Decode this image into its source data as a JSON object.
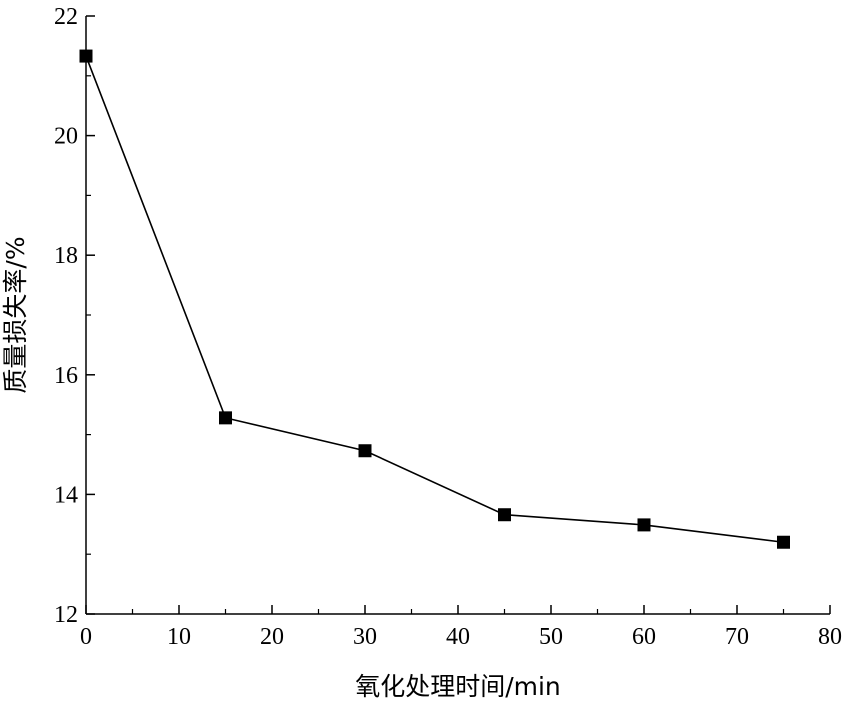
{
  "chart_data": {
    "type": "line",
    "xlabel": "氧化处理时间/min",
    "ylabel": "质量损失率/%",
    "xlim": [
      0,
      80
    ],
    "ylim": [
      12,
      22
    ],
    "xticks": [
      0,
      10,
      20,
      30,
      40,
      50,
      60,
      70,
      80
    ],
    "yticks": [
      12,
      14,
      16,
      18,
      20,
      22
    ],
    "grid": false,
    "marker": "square",
    "color": "#000000",
    "series": [
      {
        "x": [
          0,
          15,
          30,
          45,
          60,
          75
        ],
        "y": [
          21.33,
          15.28,
          14.73,
          13.66,
          13.49,
          13.2
        ]
      }
    ]
  }
}
